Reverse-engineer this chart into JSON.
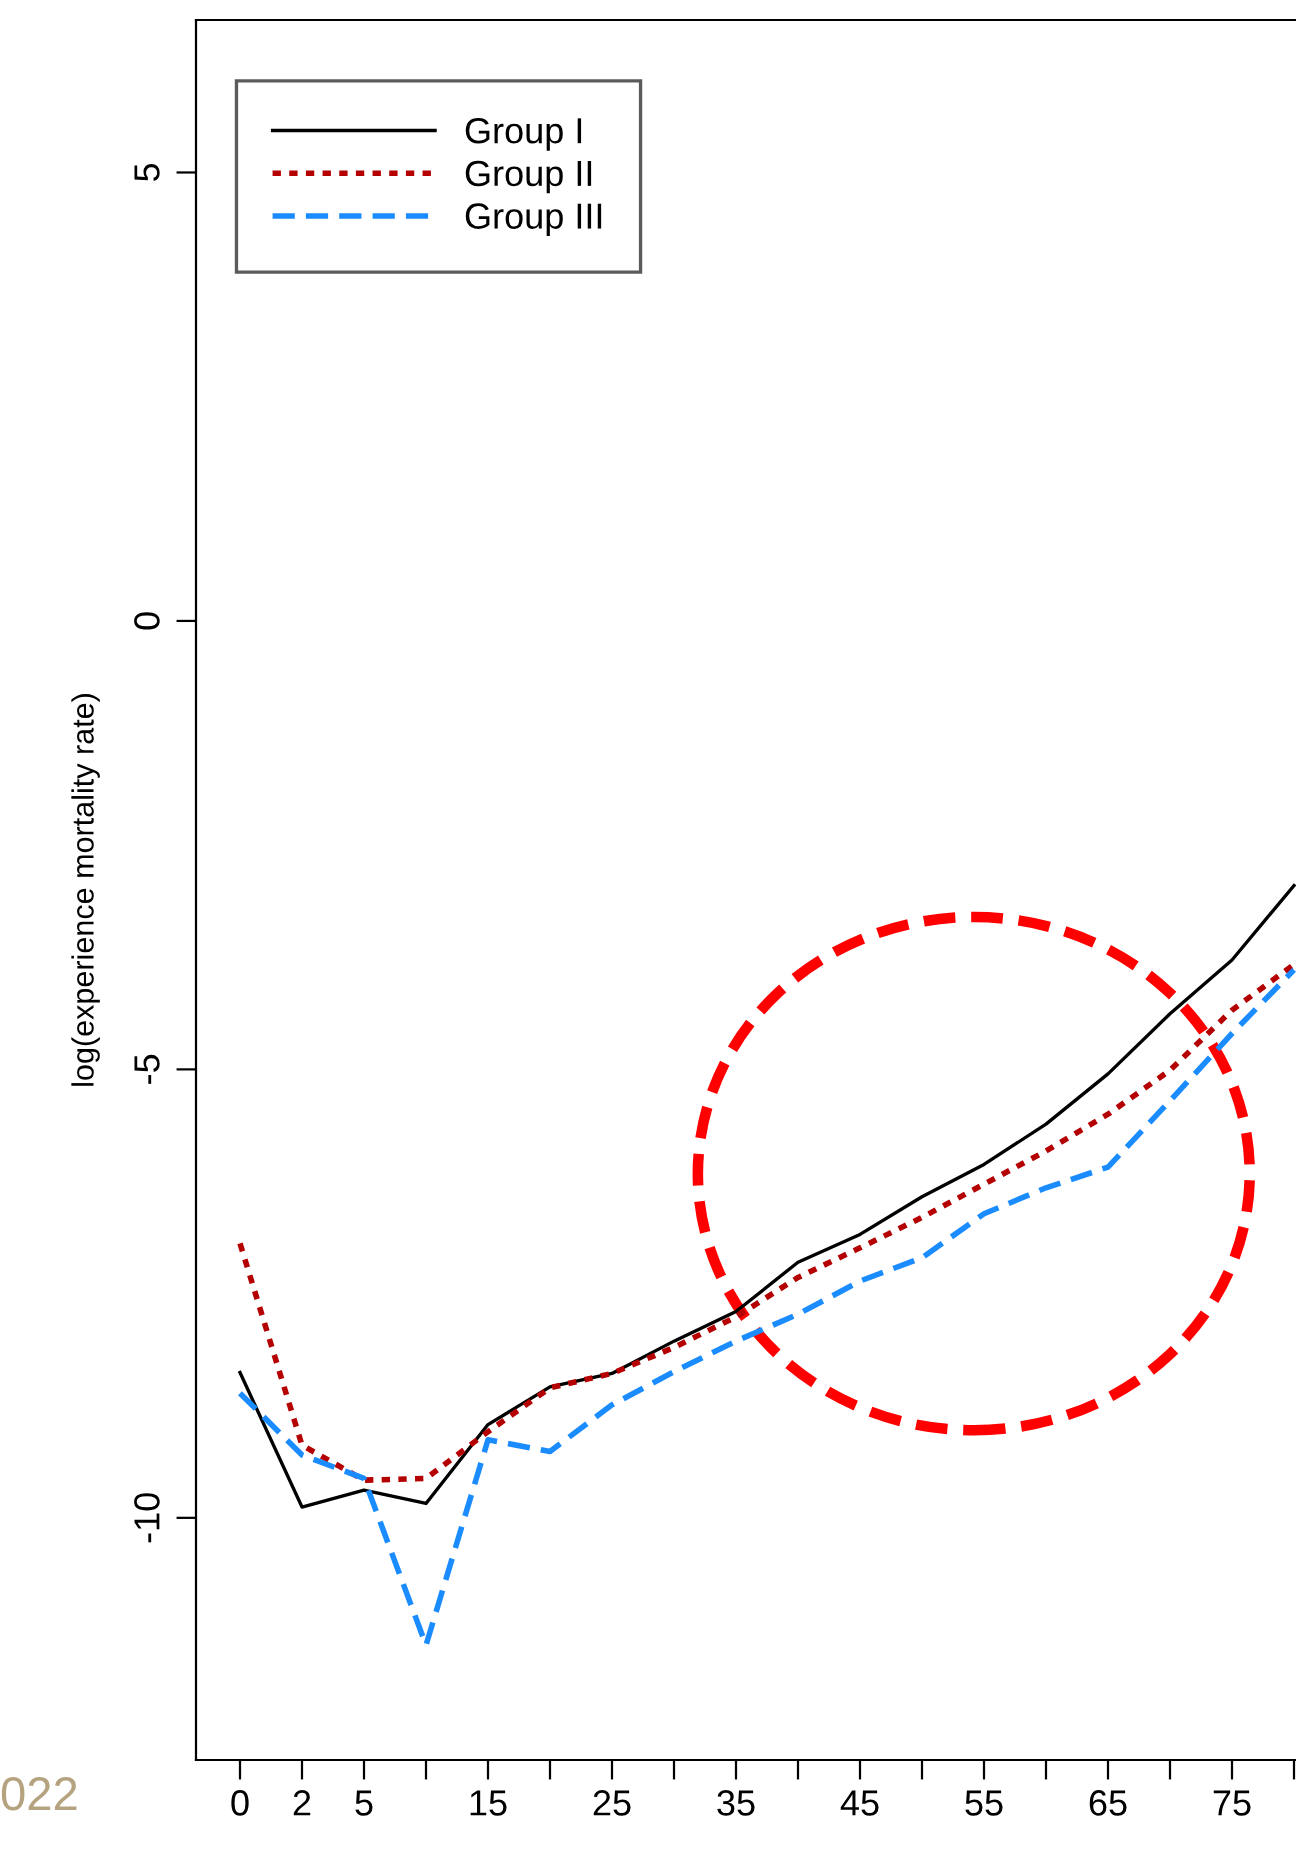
{
  "chart_data": {
    "type": "line",
    "ylabel": "log(experience mortality rate)",
    "categories": [
      "0",
      "2",
      "5",
      null,
      "15",
      null,
      "25",
      null,
      "35",
      null,
      "45",
      null,
      "55",
      null,
      "65",
      null,
      "75",
      null
    ],
    "ylim": [
      -12.7,
      6.7
    ],
    "yticks": [
      -10,
      -5,
      0,
      5
    ],
    "grid": false,
    "legend": "top left",
    "marker": "none",
    "annotations": [
      "022"
    ],
    "series": [
      {
        "name": "Group I",
        "color": "#000000",
        "line_style": "solid",
        "values": [
          -8.38,
          -9.88,
          -9.69,
          -9.84,
          -8.96,
          -8.54,
          -8.39,
          -8.03,
          -7.7,
          -7.15,
          -6.84,
          -6.42,
          -6.06,
          -5.61,
          -5.05,
          -4.38,
          -3.78,
          -2.95
        ]
      },
      {
        "name": "Group II",
        "color": "#b40000",
        "line_style": "dotted",
        "values": [
          -6.94,
          -9.19,
          -9.58,
          -9.56,
          -9.04,
          -8.55,
          -8.39,
          -8.1,
          -7.76,
          -7.32,
          -6.99,
          -6.65,
          -6.28,
          -5.91,
          -5.5,
          -5.01,
          -4.34,
          -3.83
        ]
      },
      {
        "name": "Group III",
        "color": "#1a8cff",
        "line_style": "dashed",
        "values": [
          -8.61,
          -9.3,
          -9.56,
          -11.42,
          -9.13,
          -9.26,
          -8.74,
          -8.37,
          -8.03,
          -7.73,
          -7.36,
          -7.1,
          -6.61,
          -6.32,
          -6.09,
          -5.35,
          -4.6,
          -3.89
        ]
      }
    ]
  }
}
